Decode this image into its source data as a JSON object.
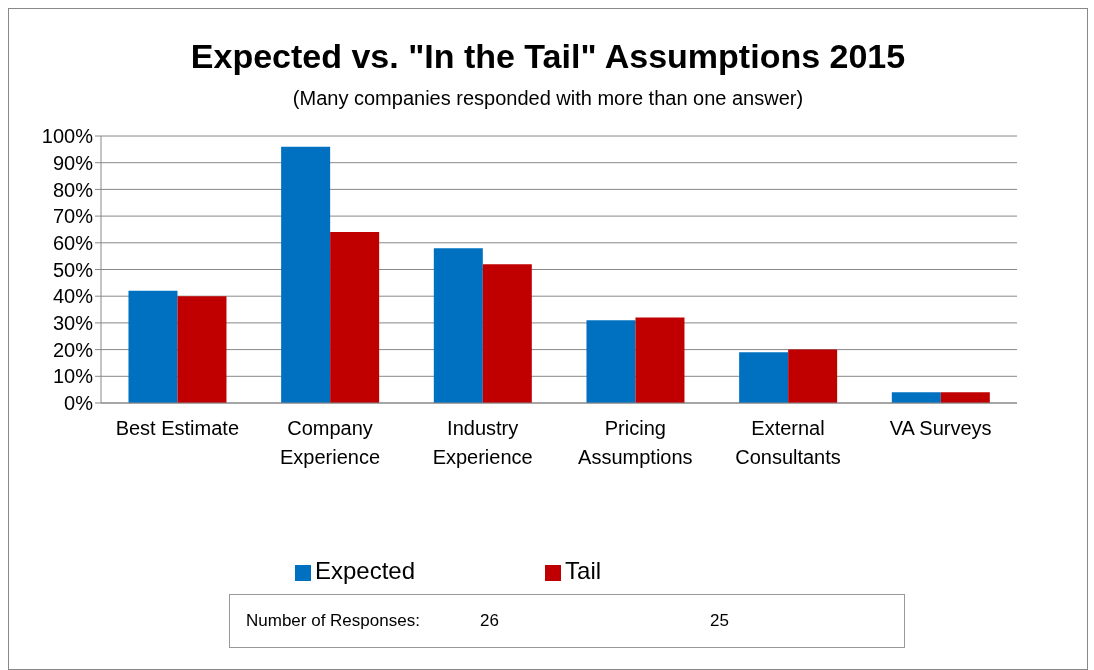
{
  "chart_data": {
    "type": "bar",
    "title": "Expected vs. \"In the Tail\" Assumptions 2015",
    "subtitle": "(Many companies responded with more than one answer)",
    "categories": [
      "Best Estimate",
      "Company Experience",
      "Industry Experience",
      "Pricing Assumptions",
      "External Consultants",
      "VA Surveys"
    ],
    "series": [
      {
        "name": "Expected",
        "color": "#0070c0",
        "values": [
          42,
          96,
          58,
          31,
          19,
          4
        ]
      },
      {
        "name": "Tail",
        "color": "#c00000",
        "values": [
          40,
          64,
          52,
          32,
          20,
          4
        ]
      }
    ],
    "ylim": [
      0,
      100
    ],
    "yticks": [
      {
        "value": 0,
        "label": "0%"
      },
      {
        "value": 10,
        "label": "10%"
      },
      {
        "value": 20,
        "label": "20%"
      },
      {
        "value": 30,
        "label": "30%"
      },
      {
        "value": 40,
        "label": "40%"
      },
      {
        "value": 50,
        "label": "50%"
      },
      {
        "value": 60,
        "label": "60%"
      },
      {
        "value": 70,
        "label": "70%"
      },
      {
        "value": 80,
        "label": "80%"
      },
      {
        "value": 90,
        "label": "90%"
      },
      {
        "value": 100,
        "label": "100%"
      }
    ],
    "grid": "y",
    "legend": "bottom",
    "annotations": [
      "Number of Responses:",
      "26",
      "25"
    ]
  }
}
